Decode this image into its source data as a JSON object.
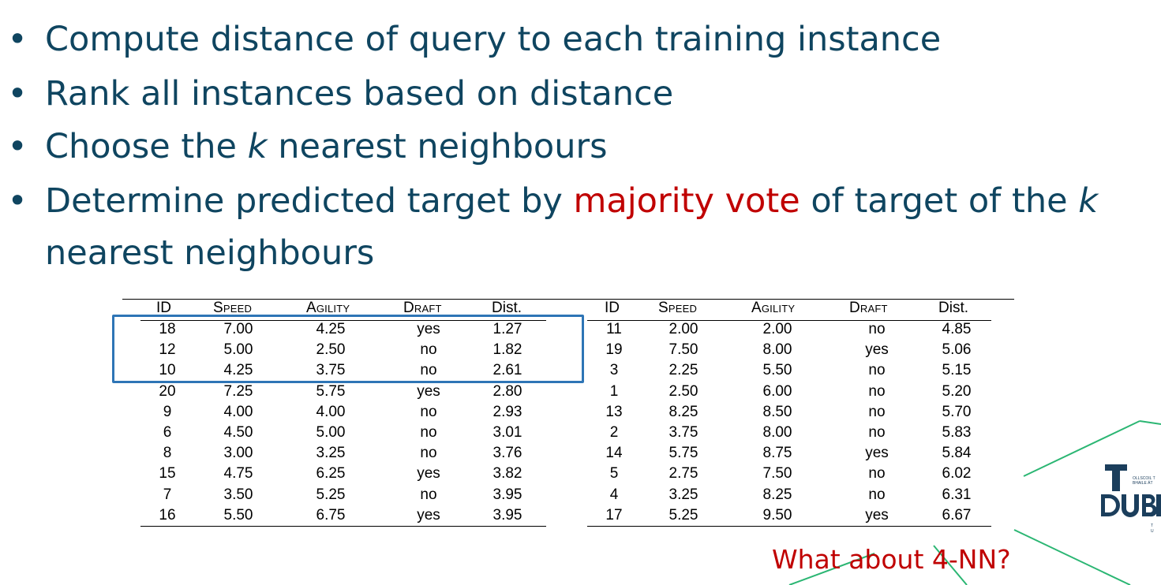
{
  "bullets": [
    {
      "text": "Compute distance of query to each training instance"
    },
    {
      "text": "Rank all instances based on distance"
    },
    {
      "pre": "Choose the ",
      "em": "k",
      "post": " nearest neighbours"
    },
    {
      "pre": "Determine predicted target by ",
      "highlight": "majority vote",
      "mid": " of target of the ",
      "em": "k",
      "post": "nearest neighbours"
    }
  ],
  "bullet_symbol": "•",
  "colors": {
    "bullet_text": "#0f4560",
    "highlight": "#c00000",
    "box": "#2e75b6",
    "decoration_lines": "#2bb673"
  },
  "table": {
    "headers": [
      "ID",
      "Speed",
      "Agility",
      "Draft",
      "Dist."
    ],
    "left_rows": [
      [
        "18",
        "7.00",
        "4.25",
        "yes",
        "1.27"
      ],
      [
        "12",
        "5.00",
        "2.50",
        "no",
        "1.82"
      ],
      [
        "10",
        "4.25",
        "3.75",
        "no",
        "2.61"
      ],
      [
        "20",
        "7.25",
        "5.75",
        "yes",
        "2.80"
      ],
      [
        "9",
        "4.00",
        "4.00",
        "no",
        "2.93"
      ],
      [
        "6",
        "4.50",
        "5.00",
        "no",
        "3.01"
      ],
      [
        "8",
        "3.00",
        "3.25",
        "no",
        "3.76"
      ],
      [
        "15",
        "4.75",
        "6.25",
        "yes",
        "3.82"
      ],
      [
        "7",
        "3.50",
        "5.25",
        "no",
        "3.95"
      ],
      [
        "16",
        "5.50",
        "6.75",
        "yes",
        "3.95"
      ]
    ],
    "right_rows": [
      [
        "11",
        "2.00",
        "2.00",
        "no",
        "4.85"
      ],
      [
        "19",
        "7.50",
        "8.00",
        "yes",
        "5.06"
      ],
      [
        "3",
        "2.25",
        "5.50",
        "no",
        "5.15"
      ],
      [
        "1",
        "2.50",
        "6.00",
        "no",
        "5.20"
      ],
      [
        "13",
        "8.25",
        "8.50",
        "no",
        "5.70"
      ],
      [
        "2",
        "3.75",
        "8.00",
        "no",
        "5.83"
      ],
      [
        "14",
        "5.75",
        "8.75",
        "yes",
        "5.84"
      ],
      [
        "5",
        "2.75",
        "7.50",
        "no",
        "6.02"
      ],
      [
        "4",
        "3.25",
        "8.25",
        "no",
        "6.31"
      ],
      [
        "17",
        "5.25",
        "9.50",
        "yes",
        "6.67"
      ]
    ]
  },
  "question": "What about 4-NN?",
  "logo": {
    "letters": "DUBL",
    "small_text_1": "OLLSCOIL T",
    "small_text_2": "BHAILE ÁT",
    "small_text_3": "T",
    "small_text_4": "U"
  }
}
